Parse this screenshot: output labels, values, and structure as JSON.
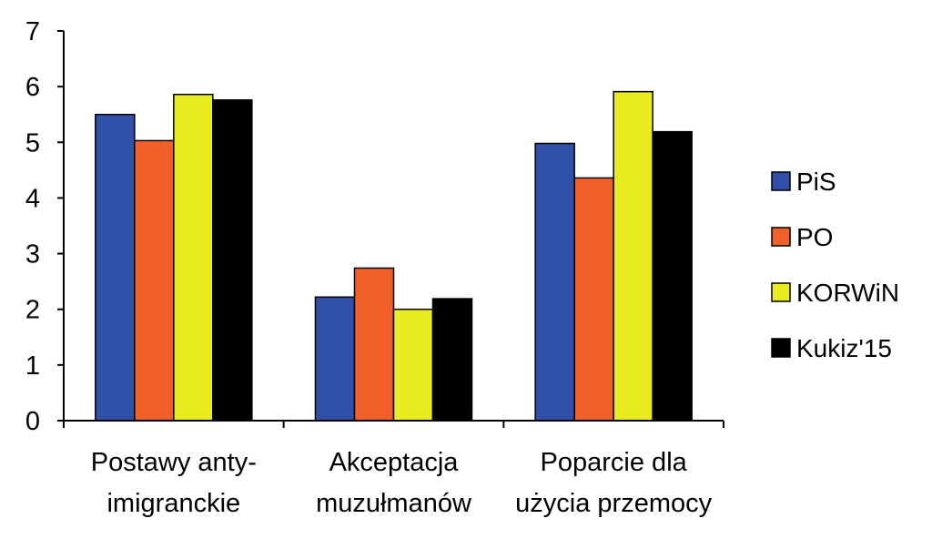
{
  "chart_data": {
    "type": "bar",
    "title": "",
    "xlabel": "",
    "ylabel": "",
    "ylim": [
      0,
      7
    ],
    "yticks": [
      0,
      1,
      2,
      3,
      4,
      5,
      6,
      7
    ],
    "grid": false,
    "legend_position": "right",
    "categories": [
      [
        "Postawy anty-",
        "imigranckie"
      ],
      [
        "Akceptacja",
        "muzułmanów"
      ],
      [
        "Poparcie dla",
        "użycia przemocy"
      ]
    ],
    "series": [
      {
        "name": "PiS",
        "color": "#3050a8",
        "values": [
          5.5,
          2.22,
          4.98
        ]
      },
      {
        "name": "PO",
        "color": "#f06028",
        "values": [
          5.03,
          2.74,
          4.36
        ]
      },
      {
        "name": "KORWiN",
        "color": "#e8ec20",
        "values": [
          5.86,
          2.0,
          5.91
        ]
      },
      {
        "name": "Kukiz'15",
        "color": "#000000",
        "values": [
          5.76,
          2.19,
          5.19
        ]
      }
    ]
  }
}
